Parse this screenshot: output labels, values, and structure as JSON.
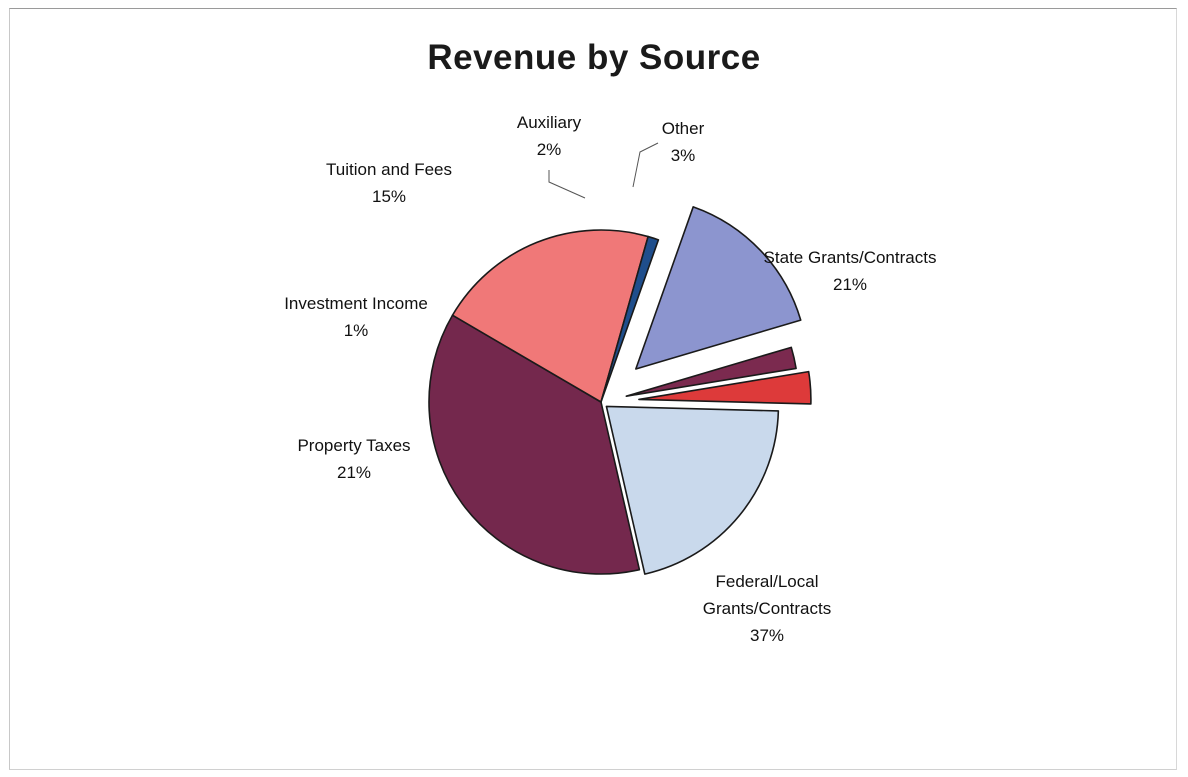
{
  "chart_data": {
    "type": "pie",
    "title": "Revenue by Source",
    "slices": [
      {
        "label": "State Grants/Contracts",
        "label_lines": [
          "State Grants/Contracts"
        ],
        "percent_text": "21%",
        "value": 21,
        "color": "#c9d9ec",
        "exploded": true
      },
      {
        "label": "Federal/Local Grants/Contracts",
        "label_lines": [
          "Federal/Local",
          "Grants/Contracts"
        ],
        "percent_text": "37%",
        "value": 37,
        "color": "#74284d",
        "exploded": false
      },
      {
        "label": "Property Taxes",
        "label_lines": [
          "Property Taxes"
        ],
        "percent_text": "21%",
        "value": 21,
        "color": "#f07878",
        "exploded": false
      },
      {
        "label": "Investment Income",
        "label_lines": [
          "Investment Income"
        ],
        "percent_text": "1%",
        "value": 1,
        "color": "#1f4e8c",
        "exploded": false
      },
      {
        "label": "Tuition and Fees",
        "label_lines": [
          "Tuition and Fees"
        ],
        "percent_text": "15%",
        "value": 15,
        "color": "#8c95cf",
        "exploded": true
      },
      {
        "label": "Auxiliary",
        "label_lines": [
          "Auxiliary"
        ],
        "percent_text": "2%",
        "value": 2,
        "color": "#7b2a4f",
        "exploded": true
      },
      {
        "label": "Other",
        "label_lines": [
          "Other"
        ],
        "percent_text": "3%",
        "value": 3,
        "color": "#dd3a3a",
        "exploded": true
      }
    ]
  }
}
